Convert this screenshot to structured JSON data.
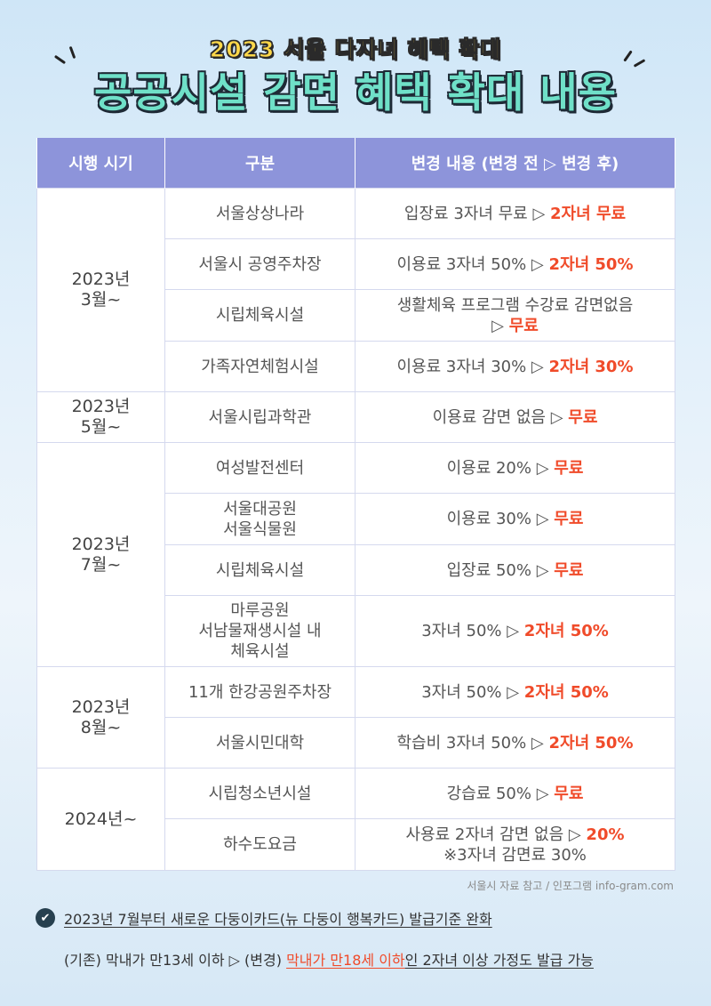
{
  "header": {
    "subtitle": "2023 서울 다자녀 혜택 확대",
    "title": "공공시설 감면 혜택 확대 내용"
  },
  "table": {
    "headers": [
      "시행 시기",
      "구분",
      "변경 내용 (변경 전 ▷ 변경 후)"
    ],
    "groups": [
      {
        "period": [
          "2023년",
          "3월~"
        ],
        "rows": [
          {
            "category": [
              "서울상상나라"
            ],
            "before": "입장료 3자녀 무료 ▷ ",
            "after": "2자녀 무료"
          },
          {
            "category": [
              "서울시 공영주차장"
            ],
            "before": "이용료 3자녀 50% ▷ ",
            "after": "2자녀 50%"
          },
          {
            "category": [
              "시립체육시설"
            ],
            "before_lines": [
              "생활체육 프로그램 수강료 감면없음"
            ],
            "before": "▷ ",
            "after": "무료"
          },
          {
            "category": [
              "가족자연체험시설"
            ],
            "before": "이용료 3자녀 30% ▷ ",
            "after": "2자녀 30%"
          }
        ]
      },
      {
        "period": [
          "2023년",
          "5월~"
        ],
        "rows": [
          {
            "category": [
              "서울시립과학관"
            ],
            "before": "이용료 감면 없음 ▷ ",
            "after": "무료"
          }
        ]
      },
      {
        "period": [
          "2023년",
          "7월~"
        ],
        "rows": [
          {
            "category": [
              "여성발전센터"
            ],
            "before": "이용료 20% ▷ ",
            "after": "무료"
          },
          {
            "category": [
              "서울대공원",
              "서울식물원"
            ],
            "before": "이용료 30% ▷ ",
            "after": "무료"
          },
          {
            "category": [
              "시립체육시설"
            ],
            "before": "입장료 50% ▷ ",
            "after": "무료"
          },
          {
            "category": [
              "마루공원",
              "서남물재생시설 내",
              "체육시설"
            ],
            "before": "3자녀 50% ▷ ",
            "after": "2자녀 50%"
          }
        ]
      },
      {
        "period": [
          "2023년",
          "8월~"
        ],
        "rows": [
          {
            "category": [
              "11개 한강공원주차장"
            ],
            "before": "3자녀 50% ▷ ",
            "after": "2자녀 50%"
          },
          {
            "category": [
              "서울시민대학"
            ],
            "before": "학습비 3자녀 50% ▷ ",
            "after": "2자녀 50%"
          }
        ]
      },
      {
        "period": [
          "2024년~"
        ],
        "rows": [
          {
            "category": [
              "시립청소년시설"
            ],
            "before": "강습료 50% ▷ ",
            "after": "무료"
          },
          {
            "category": [
              "하수도요금"
            ],
            "before": "사용료 2자녀 감면 없음 ▷ ",
            "after": "20%",
            "after_lines": [
              "※3자녀 감면료 30%"
            ]
          }
        ]
      }
    ]
  },
  "source": "서울시 자료 참고 / 인포그램 info-gram.com",
  "notes": {
    "check_icon": "✔",
    "line1": "2023년 7월부터 새로운 다둥이카드(뉴 다둥이 행복카드) 발급기준 완화",
    "line2_a": "(기존) 막내가 만13세 이하 ▷ (변경) ",
    "line2_highlight": "막내가 만18세 이하",
    "line2_b": "인 2자녀 이상 가정도 발급 가능"
  },
  "colors": {
    "header_bg": "#8d94da",
    "accent_red": "#f04b2a",
    "title_fill": "#6fe0c8",
    "subtitle_fill": "#ffd84a"
  }
}
